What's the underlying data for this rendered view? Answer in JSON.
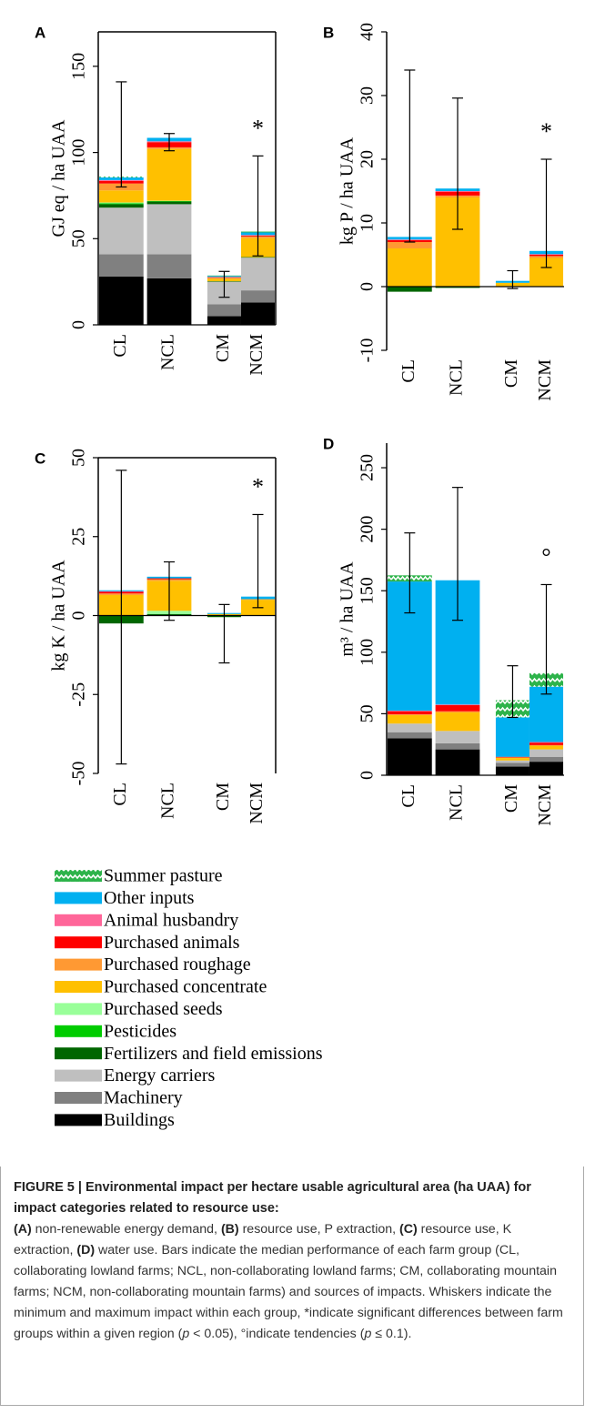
{
  "chart_data": {
    "type": "bar",
    "stacked": true,
    "legend": [
      {
        "name": "Summer pasture",
        "color": "#2db34a",
        "pattern": "zigzag"
      },
      {
        "name": "Other inputs",
        "color": "#00b0f0"
      },
      {
        "name": "Animal husbandry",
        "color": "#ff6699"
      },
      {
        "name": "Purchased animals",
        "color": "#ff0000"
      },
      {
        "name": "Purchased roughage",
        "color": "#ff9933"
      },
      {
        "name": "Purchased concentrate",
        "color": "#ffc000"
      },
      {
        "name": "Purchased seeds",
        "color": "#99ff99"
      },
      {
        "name": "Pesticides",
        "color": "#00cc00"
      },
      {
        "name": "Fertilizers and field emissions",
        "color": "#006600"
      },
      {
        "name": "Energy carriers",
        "color": "#bfbfbf"
      },
      {
        "name": "Machinery",
        "color": "#808080"
      },
      {
        "name": "Buildings",
        "color": "#000000"
      }
    ],
    "panels": [
      {
        "label": "A",
        "ylabel": "GJ eq / ha UAA",
        "categories": [
          "CL",
          "NCL",
          "CM",
          "NCM"
        ],
        "ylim": [
          0,
          170
        ],
        "yticks": [
          0,
          50,
          100,
          150
        ],
        "frame": true,
        "series": [
          {
            "values": [
              0.5,
              0,
              0.3,
              0.5
            ]
          },
          {
            "values": [
              1.5,
              2,
              0.5,
              1.5
            ]
          },
          {
            "values": [
              0.5,
              0.5,
              0.2,
              0.3
            ]
          },
          {
            "values": [
              1.5,
              3,
              0.3,
              0.5
            ]
          },
          {
            "values": [
              4,
              1,
              0.5,
              1
            ]
          },
          {
            "values": [
              7,
              30,
              1.5,
              11
            ]
          },
          {
            "values": [
              0.5,
              0.2,
              0,
              0
            ]
          },
          {
            "values": [
              0.5,
              0.3,
              0,
              0
            ]
          },
          {
            "values": [
              2,
              1.5,
              0.3,
              0.3
            ]
          },
          {
            "values": [
              27,
              29,
              13,
              19
            ]
          },
          {
            "values": [
              13,
              14,
              7,
              7
            ]
          },
          {
            "values": [
              28,
              27,
              5,
              13
            ]
          }
        ],
        "min": [
          80,
          101,
          16,
          40
        ],
        "max": [
          141,
          111,
          31,
          98
        ],
        "annotation": {
          "text": "*",
          "category": 3
        }
      },
      {
        "label": "B",
        "ylabel": "kg P / ha UAA",
        "categories": [
          "CL",
          "NCL",
          "CM",
          "NCM"
        ],
        "ylim": [
          -10,
          40
        ],
        "yticks": [
          -10,
          0,
          10,
          20,
          30,
          40
        ],
        "frame": false,
        "series": [
          {
            "values": [
              0,
              0,
              0,
              0
            ]
          },
          {
            "values": [
              0.4,
              0.4,
              0.3,
              0.5
            ]
          },
          {
            "values": [
              0.1,
              0.1,
              0,
              0.1
            ]
          },
          {
            "values": [
              0.3,
              0.6,
              0,
              0.2
            ]
          },
          {
            "values": [
              1,
              0.3,
              0,
              0.3
            ]
          },
          {
            "values": [
              6,
              14,
              0.6,
              4.5
            ]
          },
          {
            "values": [
              0,
              0,
              0,
              0
            ]
          },
          {
            "values": [
              0,
              0,
              0,
              0
            ]
          },
          {
            "values": [
              -0.8,
              -0.2,
              0,
              0
            ]
          },
          {
            "values": [
              0,
              0,
              0,
              0
            ]
          },
          {
            "values": [
              0,
              0,
              0,
              0
            ]
          },
          {
            "values": [
              0,
              0,
              0,
              0
            ]
          }
        ],
        "min": [
          7,
          9,
          -0.3,
          3
        ],
        "max": [
          34,
          29.6,
          2.5,
          20
        ],
        "annotation": {
          "text": "*",
          "category": 3
        }
      },
      {
        "label": "C",
        "ylabel": "kg K / ha UAA",
        "categories": [
          "CL",
          "NCL",
          "CM",
          "NCM"
        ],
        "ylim": [
          -50,
          50
        ],
        "yticks": [
          -50,
          -25,
          0,
          25,
          50
        ],
        "frame": true,
        "series": [
          {
            "values": [
              0,
              0,
              0,
              0
            ]
          },
          {
            "values": [
              0.3,
              0.5,
              0.3,
              0.8
            ]
          },
          {
            "values": [
              0.2,
              0,
              0,
              0
            ]
          },
          {
            "values": [
              0.5,
              0.3,
              0,
              0
            ]
          },
          {
            "values": [
              0.5,
              0.5,
              0,
              0.2
            ]
          },
          {
            "values": [
              6.5,
              9.5,
              0.5,
              5
            ]
          },
          {
            "values": [
              0,
              1,
              0,
              0
            ]
          },
          {
            "values": [
              0,
              0,
              0,
              0
            ]
          },
          {
            "values": [
              -2.5,
              0.5,
              -0.5,
              0
            ]
          },
          {
            "values": [
              0,
              0,
              0,
              0
            ]
          },
          {
            "values": [
              0,
              0,
              0,
              0
            ]
          },
          {
            "values": [
              0,
              0,
              0,
              0
            ]
          }
        ],
        "min": [
          -47,
          -1.5,
          -15,
          2.5
        ],
        "max": [
          46,
          17,
          3.5,
          32
        ],
        "annotation": {
          "text": "*",
          "category": 3
        }
      },
      {
        "label": "D",
        "ylabel": "m³ / ha UAA",
        "categories": [
          "CL",
          "NCL",
          "CM",
          "NCM"
        ],
        "ylim": [
          0,
          270
        ],
        "yticks": [
          0,
          50,
          100,
          150,
          200,
          250
        ],
        "frame": false,
        "series": [
          {
            "values": [
              5,
              0,
              14,
              11
            ]
          },
          {
            "values": [
              105,
              101,
              32,
              45
            ]
          },
          {
            "values": [
              0.5,
              0.5,
              0,
              0.5
            ]
          },
          {
            "values": [
              2.5,
              5,
              0.5,
              2
            ]
          },
          {
            "values": [
              0.5,
              1,
              0.5,
              0.5
            ]
          },
          {
            "values": [
              7,
              15,
              2,
              3
            ]
          },
          {
            "values": [
              0,
              0,
              0,
              0
            ]
          },
          {
            "values": [
              0,
              0,
              0,
              0
            ]
          },
          {
            "values": [
              0,
              0,
              0,
              0
            ]
          },
          {
            "values": [
              7,
              10,
              2,
              6
            ]
          },
          {
            "values": [
              5,
              5,
              3,
              4
            ]
          },
          {
            "values": [
              30,
              21,
              7,
              11
            ]
          }
        ],
        "min": [
          132,
          126,
          47,
          66
        ],
        "max": [
          197,
          234,
          89,
          155
        ],
        "annotation": {
          "text": "°",
          "category": 3
        }
      }
    ]
  },
  "caption": {
    "title": "FIGURE 5 | Environmental impact per hectare usable agricultural area (ha UAA) for impact categories related to resource use:",
    "segments": [
      {
        "text": "(A)",
        "style": "bold"
      },
      {
        "text": " non-renewable energy demand, ",
        "style": "normal"
      },
      {
        "text": "(B)",
        "style": "bold"
      },
      {
        "text": " resource use, P extraction, ",
        "style": "normal"
      },
      {
        "text": "(C)",
        "style": "bold"
      },
      {
        "text": " resource use, K extraction, ",
        "style": "normal"
      },
      {
        "text": "(D)",
        "style": "bold"
      },
      {
        "text": " water use. Bars indicate the median performance of each farm group (CL, collaborating lowland farms; NCL, non-collaborating lowland farms; CM, collaborating mountain farms; NCM, non-collaborating mountain farms) and sources of impacts. Whiskers indicate the minimum and maximum impact within each group, *indicate significant differences between farm groups within a given region (",
        "style": "normal"
      },
      {
        "text": "p",
        "style": "italic"
      },
      {
        "text": " < 0.05), °indicate tendencies (",
        "style": "normal"
      },
      {
        "text": "p",
        "style": "italic"
      },
      {
        "text": " ≤ 0.1).",
        "style": "normal"
      }
    ]
  }
}
